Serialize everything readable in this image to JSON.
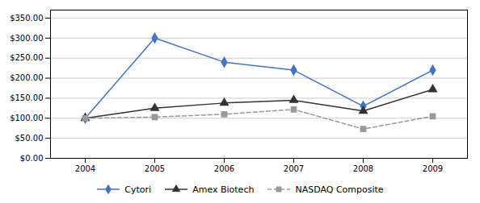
{
  "chart_data": {
    "type": "line",
    "x": [
      2004,
      2005,
      2006,
      2007,
      2008,
      2009
    ],
    "series": [
      {
        "name": "Cytori",
        "color": "#4472C4",
        "marker": "diamond",
        "line_style": "solid",
        "values": [
          100,
          300,
          240,
          220,
          130,
          220
        ]
      },
      {
        "name": "Amex Biotech",
        "color": "#333333",
        "marker": "triangle",
        "line_style": "solid",
        "values": [
          100,
          125,
          138,
          145,
          118,
          172
        ]
      },
      {
        "name": "NASDAQ Composite",
        "color": "#999999",
        "marker": "square",
        "line_style": "dashed",
        "values": [
          100,
          103,
          110,
          122,
          73,
          105
        ]
      }
    ],
    "xlim": [
      2003.5,
      2009.5
    ],
    "xticks": [
      2004,
      2005,
      2006,
      2007,
      2008,
      2009
    ],
    "ylim": [
      0,
      370
    ],
    "yticks": [
      {
        "value": 0,
        "label": "$0.00"
      },
      {
        "value": 50,
        "label": "$50.00"
      },
      {
        "value": 100,
        "label": "$100.00"
      },
      {
        "value": 150,
        "label": "$150.00"
      },
      {
        "value": 200,
        "label": "$200.00"
      },
      {
        "value": 250,
        "label": "$250.00"
      },
      {
        "value": 300,
        "label": "$300.00"
      },
      {
        "value": 350,
        "label": "$350.00"
      }
    ],
    "grid": "y",
    "legend": "bottom"
  }
}
